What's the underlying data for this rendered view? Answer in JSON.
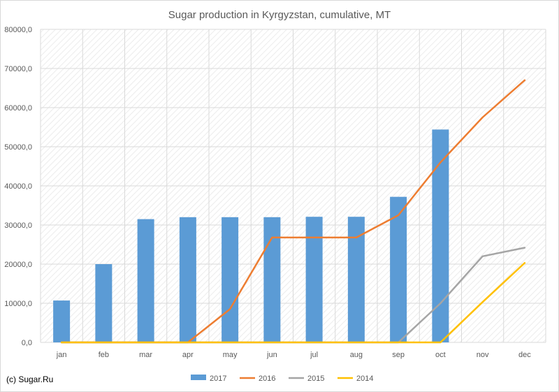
{
  "footer": {
    "credit": "(c) Sugar.Ru"
  },
  "chart_data": {
    "type": "bar",
    "title": "Sugar production in Kyrgyzstan, cumulative, MT",
    "categories": [
      "jan",
      "feb",
      "mar",
      "apr",
      "may",
      "jun",
      "jul",
      "aug",
      "sep",
      "oct",
      "nov",
      "dec"
    ],
    "ylim": [
      0,
      80000
    ],
    "yticks": [
      0,
      10000,
      20000,
      30000,
      40000,
      50000,
      60000,
      70000,
      80000
    ],
    "ytick_labels": [
      "0,0",
      "10000,0",
      "20000,0",
      "30000,0",
      "40000,0",
      "50000,0",
      "60000,0",
      "70000,0",
      "80000,0"
    ],
    "grid": true,
    "legend_position": "bottom",
    "bar_series": {
      "name": "2017",
      "color": "#5b9bd5",
      "values": [
        10700,
        20000,
        31500,
        32000,
        32000,
        32000,
        32100,
        32100,
        37200,
        54400,
        null,
        null
      ]
    },
    "line_series": [
      {
        "name": "2016",
        "color": "#ed7d31",
        "values": [
          0,
          0,
          0,
          0,
          8500,
          26800,
          26800,
          26800,
          32500,
          46000,
          57500,
          67000
        ]
      },
      {
        "name": "2015",
        "color": "#a5a5a5",
        "values": [
          0,
          0,
          0,
          0,
          0,
          0,
          0,
          0,
          0,
          10000,
          22000,
          24200
        ]
      },
      {
        "name": "2014",
        "color": "#ffc000",
        "values": [
          0,
          0,
          0,
          0,
          0,
          0,
          0,
          0,
          0,
          0,
          10300,
          20300
        ]
      }
    ]
  }
}
